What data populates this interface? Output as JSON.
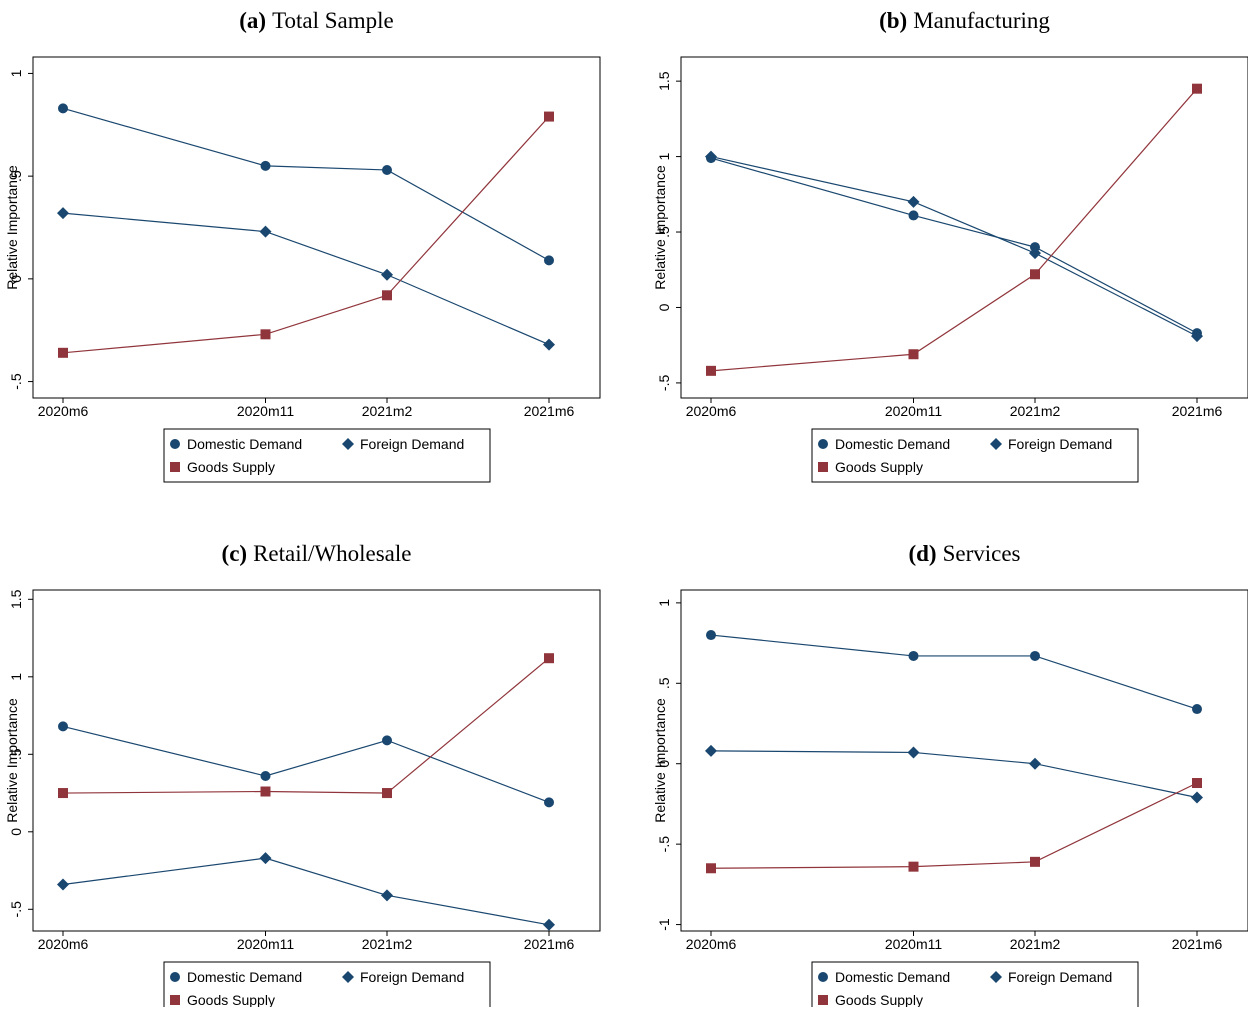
{
  "chart_data": [
    {
      "type": "line",
      "panel": "(a)",
      "title": "Total Sample",
      "y_label": "Relative Importance",
      "x": [
        "2020m6",
        "2020m11",
        "2021m2",
        "2021m6"
      ],
      "ylim": [
        -0.58,
        1.08
      ],
      "yticks": [
        {
          "value": -0.5,
          "label": "-.5"
        },
        0,
        {
          "value": 0.5,
          "label": ".5"
        },
        1
      ],
      "series": [
        {
          "name": "Domestic Demand",
          "color": "#1a476f",
          "marker": "circle",
          "values": [
            0.83,
            0.55,
            0.53,
            0.09
          ]
        },
        {
          "name": "Foreign Demand",
          "color": "#1a476f",
          "marker": "diamond",
          "values": [
            0.32,
            0.23,
            0.02,
            -0.32
          ]
        },
        {
          "name": "Goods Supply",
          "color": "#90353b",
          "marker": "square",
          "values": [
            -0.36,
            -0.27,
            -0.08,
            0.79
          ]
        }
      ]
    },
    {
      "type": "line",
      "panel": "(b)",
      "title": "Manufacturing",
      "y_label": "Relative Importance",
      "x": [
        "2020m6",
        "2020m11",
        "2021m2",
        "2021m6"
      ],
      "ylim": [
        -0.6,
        1.66
      ],
      "yticks": [
        {
          "value": -0.5,
          "label": "-.5"
        },
        0,
        {
          "value": 0.5,
          "label": ".5"
        },
        1,
        1.5
      ],
      "series": [
        {
          "name": "Domestic Demand",
          "color": "#1a476f",
          "marker": "circle",
          "values": [
            0.99,
            0.61,
            0.4,
            -0.17
          ]
        },
        {
          "name": "Foreign Demand",
          "color": "#1a476f",
          "marker": "diamond",
          "values": [
            1.0,
            0.7,
            0.36,
            -0.19
          ]
        },
        {
          "name": "Goods Supply",
          "color": "#90353b",
          "marker": "square",
          "values": [
            -0.42,
            -0.31,
            0.22,
            1.45
          ]
        }
      ]
    },
    {
      "type": "line",
      "panel": "(c)",
      "title": "Retail/Wholesale",
      "y_label": "Relative Importance",
      "x": [
        "2020m6",
        "2020m11",
        "2021m2",
        "2021m6"
      ],
      "ylim": [
        -0.64,
        1.56
      ],
      "yticks": [
        {
          "value": -0.5,
          "label": "-.5"
        },
        0,
        {
          "value": 0.5,
          "label": ".5"
        },
        1,
        1.5
      ],
      "series": [
        {
          "name": "Domestic Demand",
          "color": "#1a476f",
          "marker": "circle",
          "values": [
            0.68,
            0.36,
            0.59,
            0.19
          ]
        },
        {
          "name": "Foreign Demand",
          "color": "#1a476f",
          "marker": "diamond",
          "values": [
            -0.34,
            -0.17,
            -0.41,
            -0.6
          ]
        },
        {
          "name": "Goods Supply",
          "color": "#90353b",
          "marker": "square",
          "values": [
            0.25,
            0.26,
            0.25,
            1.12
          ]
        }
      ]
    },
    {
      "type": "line",
      "panel": "(d)",
      "title": "Services",
      "y_label": "Relative Importance",
      "x": [
        "2020m6",
        "2020m11",
        "2021m2",
        "2021m6"
      ],
      "ylim": [
        -1.04,
        1.08
      ],
      "yticks": [
        -1,
        {
          "value": -0.5,
          "label": "-.5"
        },
        0,
        {
          "value": 0.5,
          "label": ".5"
        },
        1
      ],
      "series": [
        {
          "name": "Domestic Demand",
          "color": "#1a476f",
          "marker": "circle",
          "values": [
            0.8,
            0.67,
            0.67,
            0.34
          ]
        },
        {
          "name": "Foreign Demand",
          "color": "#1a476f",
          "marker": "diamond",
          "values": [
            0.08,
            0.07,
            0.0,
            -0.21
          ]
        },
        {
          "name": "Goods Supply",
          "color": "#90353b",
          "marker": "square",
          "values": [
            -0.65,
            -0.64,
            -0.61,
            -0.12
          ]
        }
      ]
    }
  ]
}
